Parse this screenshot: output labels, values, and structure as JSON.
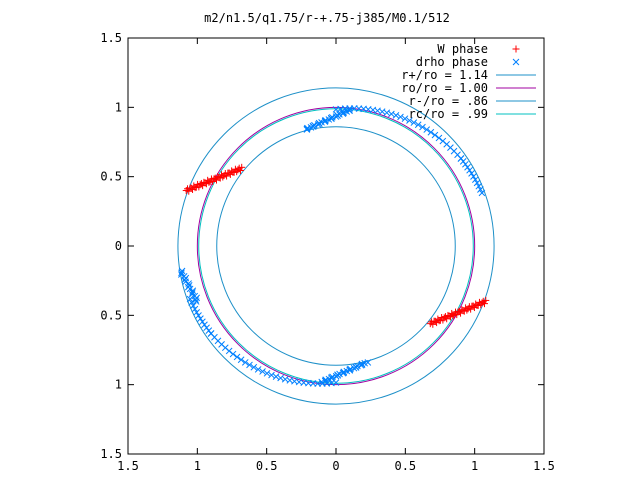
{
  "chart_data": {
    "type": "scatter",
    "title": "m2/n1.5/q1.75/r-+.75-j385/M0.1/512",
    "xlim": [
      -1.5,
      1.5
    ],
    "ylim": [
      -1.5,
      1.5
    ],
    "x_ticks": [
      {
        "value": -1.5,
        "label": "1.5"
      },
      {
        "value": -1.0,
        "label": "1"
      },
      {
        "value": -0.5,
        "label": "0.5"
      },
      {
        "value": 0.0,
        "label": "0"
      },
      {
        "value": 0.5,
        "label": "0.5"
      },
      {
        "value": 1.0,
        "label": "1"
      },
      {
        "value": 1.5,
        "label": "1.5"
      }
    ],
    "y_ticks": [
      {
        "value": -1.5,
        "label": "1.5"
      },
      {
        "value": -1.0,
        "label": "1"
      },
      {
        "value": -0.5,
        "label": "0.5"
      },
      {
        "value": 0.0,
        "label": "0"
      },
      {
        "value": 0.5,
        "label": "0.5"
      },
      {
        "value": 1.0,
        "label": "1"
      },
      {
        "value": 1.5,
        "label": "1.5"
      }
    ],
    "grid": false,
    "legend_position": "top-right",
    "series": [
      {
        "name": "W phase",
        "kind": "points",
        "marker": "plus",
        "color": "#ff0000",
        "segments": [
          {
            "x_start": -1.08,
            "y_start": 0.4,
            "x_end": -0.68,
            "y_end": 0.56,
            "count": 45
          },
          {
            "x_start": 0.68,
            "y_start": -0.56,
            "x_end": 1.08,
            "y_end": -0.4,
            "count": 45
          }
        ]
      },
      {
        "name": "drho phase",
        "kind": "points",
        "marker": "cross",
        "color": "#0080ff",
        "arcs": [
          {
            "from_deg": 90,
            "to_deg": 35,
            "radius_start": 0.985,
            "radius_end": 1.1,
            "count": 30
          },
          {
            "from_deg": 35,
            "to_deg": 20,
            "radius_start": 1.1,
            "radius_end": 1.12,
            "count": 12
          },
          {
            "from_deg": 270,
            "to_deg": 215,
            "radius_start": 0.985,
            "radius_end": 1.1,
            "count": 30
          },
          {
            "from_deg": 215,
            "to_deg": 200,
            "radius_start": 1.1,
            "radius_end": 1.12,
            "count": 12
          }
        ],
        "clusters": [
          {
            "x_start": -0.22,
            "y_start": 0.84,
            "x_end": 0.1,
            "y_end": 0.98,
            "count": 28
          },
          {
            "x_start": 0.22,
            "y_start": -0.84,
            "x_end": -0.1,
            "y_end": -0.98,
            "count": 28
          },
          {
            "x_start": -1.12,
            "y_start": -0.18,
            "x_end": -1.0,
            "y_end": -0.4,
            "count": 18
          }
        ]
      },
      {
        "name": "r+/ro = 1.14",
        "kind": "circle",
        "radius": 1.14,
        "color": "#1e90c8"
      },
      {
        "name": "ro/ro = 1.00",
        "kind": "circle",
        "radius": 1.0,
        "color": "#a000a0"
      },
      {
        "name": "r-/ro = .86",
        "kind": "circle",
        "radius": 0.86,
        "color": "#1e90c8"
      },
      {
        "name": "rc/ro = .99",
        "kind": "circle",
        "radius": 0.99,
        "color": "#00c0c0"
      }
    ]
  }
}
